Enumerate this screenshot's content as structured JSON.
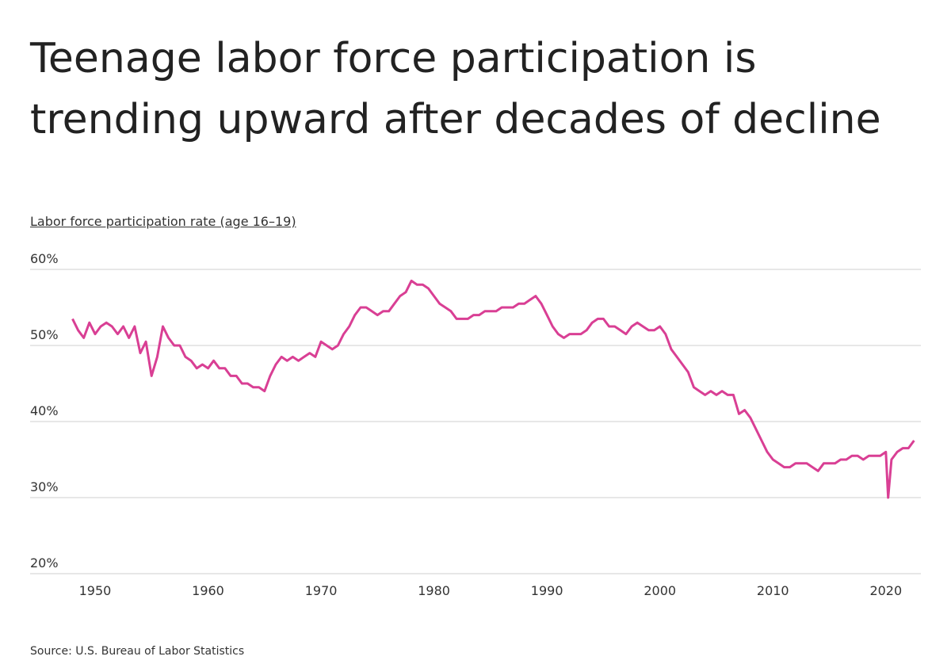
{
  "chart_data": {
    "type": "line",
    "title": "Teenage labor force participation is trending upward after decades of decline",
    "y_label": "Labor force participation rate (age 16–19)",
    "source": "Source: U.S. Bureau of Labor Statistics",
    "color": "#d93f94",
    "grid": true,
    "xlim": [
      1944.25,
      2023.1
    ],
    "ylim": [
      20,
      60
    ],
    "xticks": [
      1950,
      1960,
      1970,
      1980,
      1990,
      2000,
      2010,
      2020
    ],
    "yticks": [
      {
        "value": 20,
        "label": "20%"
      },
      {
        "value": 30,
        "label": "30%"
      },
      {
        "value": 40,
        "label": "40%"
      },
      {
        "value": 50,
        "label": "50%"
      },
      {
        "value": 60,
        "label": "60%"
      }
    ],
    "x": [
      1948,
      1948.5,
      1949,
      1949.5,
      1950,
      1950.5,
      1951,
      1951.5,
      1952,
      1952.5,
      1953,
      1953.5,
      1954,
      1954.5,
      1955,
      1955.5,
      1956,
      1956.5,
      1957,
      1957.5,
      1958,
      1958.5,
      1959,
      1959.5,
      1960,
      1960.5,
      1961,
      1961.5,
      1962,
      1962.5,
      1963,
      1963.5,
      1964,
      1964.5,
      1965,
      1965.5,
      1966,
      1966.5,
      1967,
      1967.5,
      1968,
      1968.5,
      1969,
      1969.5,
      1970,
      1970.5,
      1971,
      1971.5,
      1972,
      1972.5,
      1973,
      1973.5,
      1974,
      1974.5,
      1975,
      1975.5,
      1976,
      1976.5,
      1977,
      1977.5,
      1978,
      1978.5,
      1979,
      1979.5,
      1980,
      1980.5,
      1981,
      1981.5,
      1982,
      1982.5,
      1983,
      1983.5,
      1984,
      1984.5,
      1985,
      1985.5,
      1986,
      1986.5,
      1987,
      1987.5,
      1988,
      1988.5,
      1989,
      1989.5,
      1990,
      1990.5,
      1991,
      1991.5,
      1992,
      1992.5,
      1993,
      1993.5,
      1994,
      1994.5,
      1995,
      1995.5,
      1996,
      1996.5,
      1997,
      1997.5,
      1998,
      1998.5,
      1999,
      1999.5,
      2000,
      2000.5,
      2001,
      2001.5,
      2002,
      2002.5,
      2003,
      2003.5,
      2004,
      2004.5,
      2005,
      2005.5,
      2006,
      2006.5,
      2007,
      2007.5,
      2008,
      2008.5,
      2009,
      2009.5,
      2010,
      2010.5,
      2011,
      2011.5,
      2012,
      2012.5,
      2013,
      2013.5,
      2014,
      2014.5,
      2015,
      2015.5,
      2016,
      2016.5,
      2017,
      2017.5,
      2018,
      2018.5,
      2019,
      2019.5,
      2020,
      2020.2,
      2020.5,
      2021,
      2021.5,
      2022,
      2022.5
    ],
    "values": [
      53.5,
      52,
      51,
      53,
      51.5,
      52.5,
      53,
      52.5,
      51.5,
      52.5,
      51,
      52.5,
      49,
      50.5,
      46,
      48.5,
      52.5,
      51,
      50,
      50,
      48.5,
      48,
      47,
      47.5,
      47,
      48,
      47,
      47,
      46,
      46,
      45,
      45,
      44.5,
      44.5,
      44,
      46,
      47.5,
      48.5,
      48,
      48.5,
      48,
      48.5,
      49,
      48.5,
      50.5,
      50,
      49.5,
      50,
      51.5,
      52.5,
      54,
      55,
      55,
      54.5,
      54,
      54.5,
      54.5,
      55.5,
      56.5,
      57,
      58.5,
      58,
      58,
      57.5,
      56.5,
      55.5,
      55,
      54.5,
      53.5,
      53.5,
      53.5,
      54,
      54,
      54.5,
      54.5,
      54.5,
      55,
      55,
      55,
      55.5,
      55.5,
      56,
      56.5,
      55.5,
      54,
      52.5,
      51.5,
      51,
      51.5,
      51.5,
      51.5,
      52,
      53,
      53.5,
      53.5,
      52.5,
      52.5,
      52,
      51.5,
      52.5,
      53,
      52.5,
      52,
      52,
      52.5,
      51.5,
      49.5,
      48.5,
      47.5,
      46.5,
      44.5,
      44,
      43.5,
      44,
      43.5,
      44,
      43.5,
      43.5,
      41,
      41.5,
      40.5,
      39,
      37.5,
      36,
      35,
      34.5,
      34,
      34,
      34.5,
      34.5,
      34.5,
      34,
      33.5,
      34.5,
      34.5,
      34.5,
      35,
      35,
      35.5,
      35.5,
      35,
      35.5,
      35.5,
      35.5,
      36,
      30,
      35,
      36,
      36.5,
      36.5,
      37.5
    ]
  }
}
